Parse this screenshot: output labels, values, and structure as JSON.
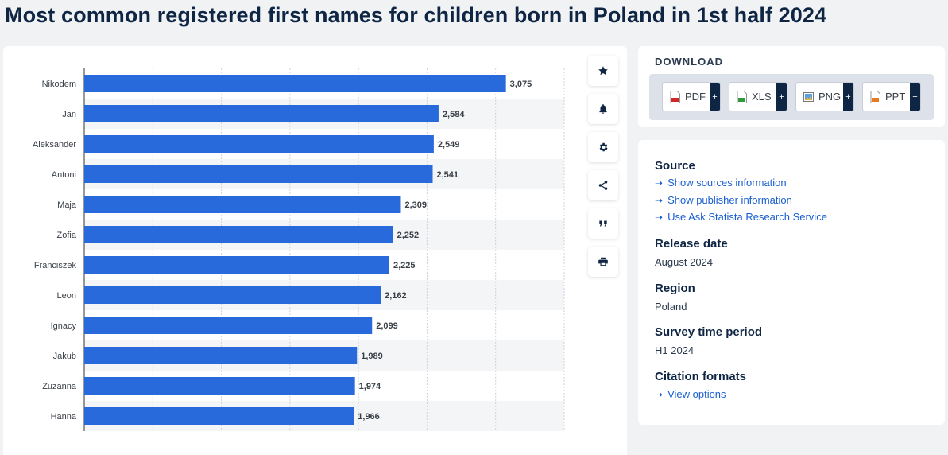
{
  "title": "Most common registered first names for children born in Poland in 1st half 2024",
  "chart_data": {
    "type": "bar",
    "orientation": "horizontal",
    "categories": [
      "Nikodem",
      "Jan",
      "Aleksander",
      "Antoni",
      "Maja",
      "Zofia",
      "Franciszek",
      "Leon",
      "Ignacy",
      "Jakub",
      "Zuzanna",
      "Hanna"
    ],
    "values": [
      3075,
      2584,
      2549,
      2541,
      2309,
      2252,
      2225,
      2162,
      2099,
      1989,
      1974,
      1966
    ],
    "value_labels": [
      "3,075",
      "2,584",
      "2,549",
      "2,541",
      "2,309",
      "2,252",
      "2,225",
      "2,162",
      "2,099",
      "1,989",
      "1,974",
      "1,966"
    ],
    "xlim": [
      0,
      3500
    ],
    "grid": true,
    "legend": "none",
    "bar_color": "#2869db"
  },
  "tools": [
    {
      "name": "favorite",
      "icon": "star-icon"
    },
    {
      "name": "notification",
      "icon": "bell-icon"
    },
    {
      "name": "settings",
      "icon": "gear-icon"
    },
    {
      "name": "share",
      "icon": "share-icon"
    },
    {
      "name": "cite",
      "icon": "quote-icon"
    },
    {
      "name": "print",
      "icon": "print-icon"
    }
  ],
  "download": {
    "title": "DOWNLOAD",
    "buttons": [
      {
        "label": "PDF",
        "icon": "pdf-file-icon"
      },
      {
        "label": "XLS",
        "icon": "xls-file-icon"
      },
      {
        "label": "PNG",
        "icon": "png-file-icon"
      },
      {
        "label": "PPT",
        "icon": "ppt-file-icon"
      }
    ],
    "plus": "+"
  },
  "info": {
    "source_heading": "Source",
    "source_links": [
      "Show sources information",
      "Show publisher information",
      "Use Ask Statista Research Service"
    ],
    "release_heading": "Release date",
    "release_value": "August 2024",
    "region_heading": "Region",
    "region_value": "Poland",
    "survey_heading": "Survey time period",
    "survey_value": "H1 2024",
    "citation_heading": "Citation formats",
    "citation_link": "View options"
  },
  "colors": {
    "accent": "#2869db",
    "link": "#1a5fd0",
    "heading": "#0f2544"
  }
}
